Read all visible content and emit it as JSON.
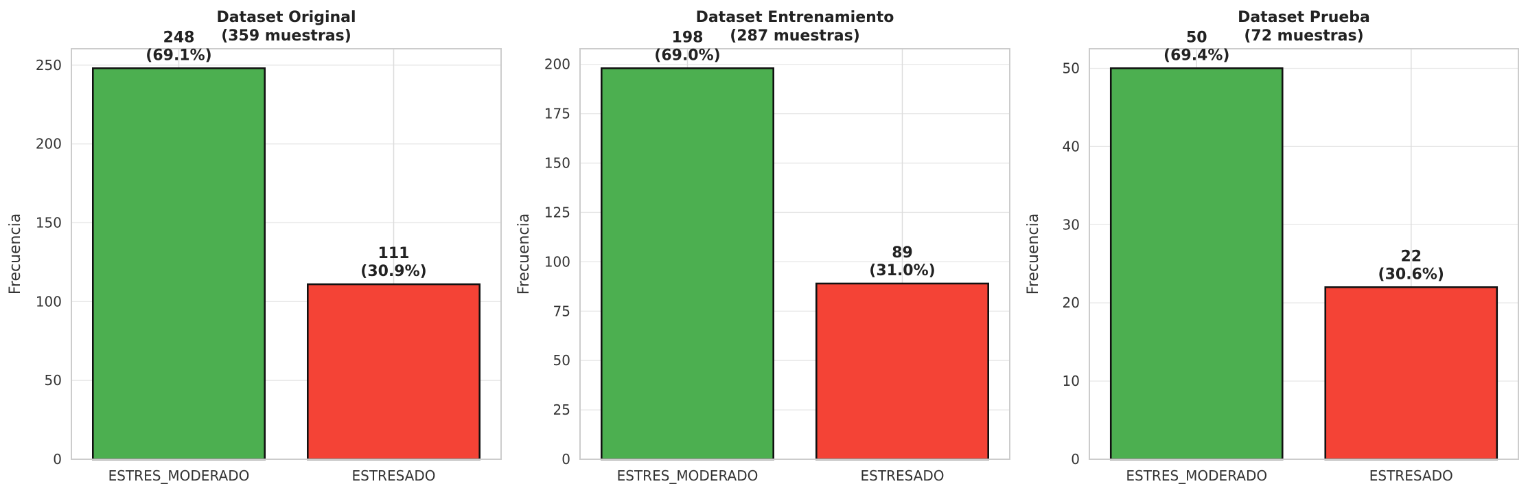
{
  "chart_data": [
    {
      "type": "bar",
      "title": "Dataset Original",
      "subtitle": "(359 muestras)",
      "xlabel": "",
      "ylabel": "Frecuencia",
      "categories": [
        "ESTRES_MODERADO",
        "ESTRESADO"
      ],
      "values": [
        248,
        111
      ],
      "value_labels": [
        "248",
        "111"
      ],
      "percent_labels": [
        "(69.1%)",
        "(30.9%)"
      ],
      "colors": [
        "#4caf50",
        "#f44336"
      ],
      "ylim": [
        0,
        260.4
      ],
      "yticks": [
        0,
        50,
        100,
        150,
        200,
        250
      ],
      "grid": true,
      "legend": "none"
    },
    {
      "type": "bar",
      "title": "Dataset Entrenamiento",
      "subtitle": "(287 muestras)",
      "xlabel": "",
      "ylabel": "Frecuencia",
      "categories": [
        "ESTRES_MODERADO",
        "ESTRESADO"
      ],
      "values": [
        198,
        89
      ],
      "value_labels": [
        "198",
        "89"
      ],
      "percent_labels": [
        "(69.0%)",
        "(31.0%)"
      ],
      "colors": [
        "#4caf50",
        "#f44336"
      ],
      "ylim": [
        0,
        207.9
      ],
      "yticks": [
        0,
        25,
        50,
        75,
        100,
        125,
        150,
        175,
        200
      ],
      "grid": true,
      "legend": "none"
    },
    {
      "type": "bar",
      "title": "Dataset Prueba",
      "subtitle": "(72 muestras)",
      "xlabel": "",
      "ylabel": "Frecuencia",
      "categories": [
        "ESTRES_MODERADO",
        "ESTRESADO"
      ],
      "values": [
        50,
        22
      ],
      "value_labels": [
        "50",
        "22"
      ],
      "percent_labels": [
        "(69.4%)",
        "(30.6%)"
      ],
      "colors": [
        "#4caf50",
        "#f44336"
      ],
      "ylim": [
        0,
        52.5
      ],
      "yticks": [
        0,
        10,
        20,
        30,
        40,
        50
      ],
      "grid": true,
      "legend": "none"
    }
  ]
}
